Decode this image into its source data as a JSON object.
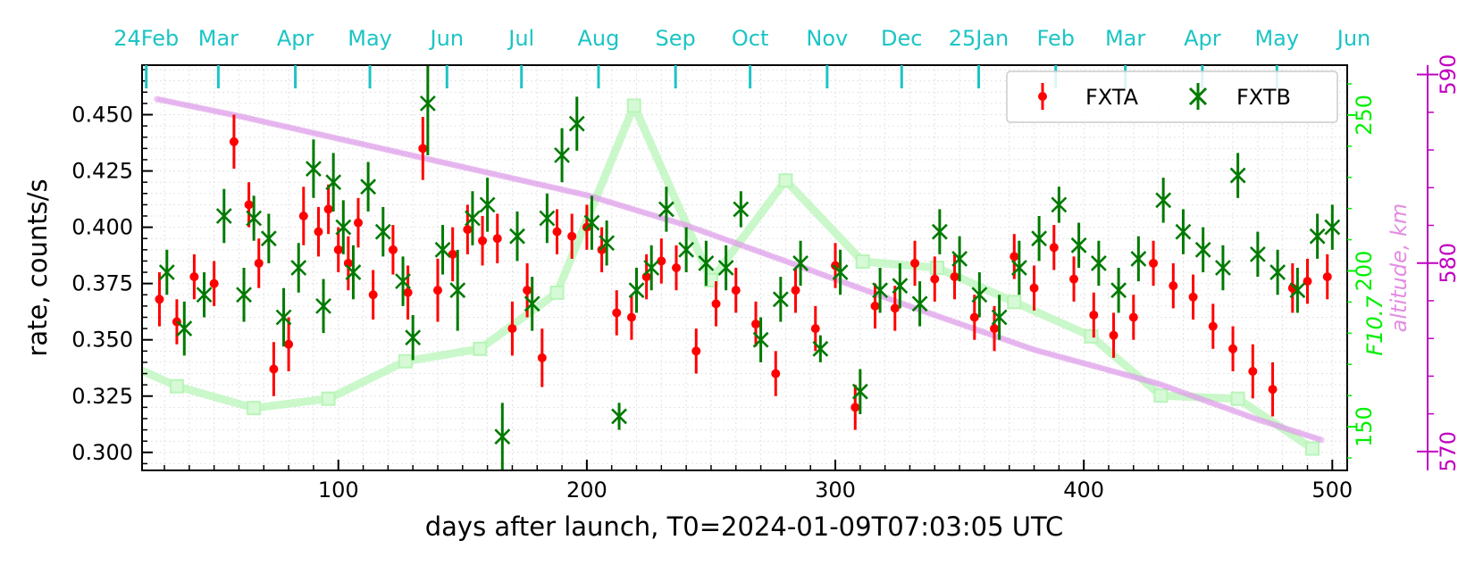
{
  "chart_data": {
    "type": "scatter",
    "title": "",
    "xlabel": "days after launch, T0=2024-01-09T07:03:05 UTC",
    "ylabel": "rate, counts/s",
    "xlim": [
      21,
      506
    ],
    "ylim": [
      0.292,
      0.472
    ],
    "x_ticks": [
      100,
      200,
      300,
      400,
      500
    ],
    "y_ticks": [
      0.3,
      0.325,
      0.35,
      0.375,
      0.4,
      0.425,
      0.45
    ],
    "y_tick_labels": [
      "0.300",
      "0.325",
      "0.350",
      "0.375",
      "0.400",
      "0.425",
      "0.450"
    ],
    "grid": true,
    "legend": "top-right",
    "top_axis": {
      "labels": [
        "24Feb",
        "Mar",
        "Apr",
        "May",
        "Jun",
        "Jul",
        "Aug",
        "Sep",
        "Oct",
        "Nov",
        "Dec",
        "25Jan",
        "Feb",
        "Mar",
        "Apr",
        "May",
        "Jun"
      ],
      "days": [
        22.7,
        51.7,
        82.7,
        112.7,
        143.7,
        173.7,
        204.7,
        235.7,
        265.7,
        296.7,
        326.7,
        357.7,
        388.7,
        416.7,
        447.7,
        477.7,
        508.7
      ],
      "color": "#1cc4c4"
    },
    "f107_axis": {
      "label": "F10.7",
      "ylim": [
        136,
        266
      ],
      "ticks": [
        150,
        200,
        250
      ],
      "tick_labels": [
        "150",
        "200",
        "250"
      ],
      "color": "#00ee00"
    },
    "altitude_axis": {
      "label": "altitude, km",
      "ylim": [
        569,
        590.5
      ],
      "ticks": [
        570,
        580,
        590
      ],
      "tick_labels": [
        "570",
        "580",
        "590"
      ],
      "color": "#c000c0"
    },
    "series": [
      {
        "name": "FXTA",
        "color": "#ff0000",
        "marker": "dot",
        "x": [
          28,
          35,
          42,
          50,
          58,
          64,
          68,
          74,
          80,
          86,
          92,
          96,
          100,
          104,
          108,
          114,
          122,
          128,
          134,
          140,
          146,
          152,
          158,
          164,
          170,
          176,
          182,
          188,
          194,
          200,
          206,
          212,
          218,
          224,
          230,
          236,
          244,
          252,
          260,
          268,
          276,
          284,
          292,
          300,
          308,
          316,
          324,
          332,
          340,
          348,
          356,
          364,
          372,
          380,
          388,
          396,
          404,
          412,
          420,
          428,
          436,
          444,
          452,
          460,
          468,
          476,
          484,
          490,
          498
        ],
        "y": [
          0.368,
          0.358,
          0.378,
          0.375,
          0.438,
          0.41,
          0.384,
          0.337,
          0.348,
          0.405,
          0.398,
          0.408,
          0.39,
          0.384,
          0.402,
          0.37,
          0.39,
          0.371,
          0.435,
          0.372,
          0.388,
          0.399,
          0.394,
          0.395,
          0.355,
          0.372,
          0.342,
          0.398,
          0.396,
          0.4,
          0.39,
          0.362,
          0.36,
          0.378,
          0.385,
          0.382,
          0.345,
          0.366,
          0.372,
          0.357,
          0.335,
          0.372,
          0.355,
          0.383,
          0.32,
          0.365,
          0.364,
          0.384,
          0.377,
          0.378,
          0.36,
          0.355,
          0.387,
          0.373,
          0.391,
          0.377,
          0.361,
          0.352,
          0.36,
          0.384,
          0.374,
          0.369,
          0.356,
          0.346,
          0.336,
          0.328,
          0.373,
          0.376,
          0.378
        ],
        "yerr": [
          0.012,
          0.01,
          0.01,
          0.01,
          0.012,
          0.01,
          0.011,
          0.012,
          0.012,
          0.013,
          0.011,
          0.011,
          0.01,
          0.012,
          0.011,
          0.011,
          0.011,
          0.012,
          0.014,
          0.014,
          0.012,
          0.011,
          0.011,
          0.011,
          0.012,
          0.012,
          0.013,
          0.01,
          0.01,
          0.01,
          0.01,
          0.01,
          0.01,
          0.01,
          0.01,
          0.01,
          0.01,
          0.01,
          0.01,
          0.01,
          0.01,
          0.01,
          0.01,
          0.01,
          0.01,
          0.01,
          0.01,
          0.01,
          0.01,
          0.01,
          0.01,
          0.01,
          0.01,
          0.01,
          0.01,
          0.01,
          0.01,
          0.01,
          0.01,
          0.01,
          0.01,
          0.01,
          0.01,
          0.01,
          0.012,
          0.012,
          0.011,
          0.01,
          0.01
        ]
      },
      {
        "name": "FXTB",
        "color": "#007a00",
        "marker": "x",
        "x": [
          31,
          38,
          46,
          54,
          62,
          66,
          72,
          78,
          84,
          90,
          94,
          98,
          102,
          106,
          112,
          118,
          126,
          130,
          136,
          142,
          148,
          154,
          160,
          166,
          172,
          178,
          184,
          190,
          196,
          202,
          208,
          213,
          220,
          226,
          232,
          240,
          248,
          256,
          262,
          270,
          278,
          286,
          294,
          302,
          310,
          318,
          326,
          334,
          342,
          350,
          358,
          366,
          374,
          382,
          390,
          398,
          406,
          414,
          422,
          432,
          440,
          448,
          456,
          462,
          470,
          478,
          486,
          494,
          500
        ],
        "y": [
          0.38,
          0.355,
          0.37,
          0.405,
          0.37,
          0.404,
          0.395,
          0.36,
          0.382,
          0.426,
          0.365,
          0.42,
          0.4,
          0.38,
          0.418,
          0.398,
          0.376,
          0.351,
          0.455,
          0.39,
          0.372,
          0.404,
          0.41,
          0.307,
          0.396,
          0.366,
          0.404,
          0.432,
          0.446,
          0.402,
          0.393,
          0.316,
          0.372,
          0.382,
          0.408,
          0.39,
          0.384,
          0.382,
          0.408,
          0.35,
          0.368,
          0.384,
          0.346,
          0.38,
          0.327,
          0.372,
          0.374,
          0.366,
          0.398,
          0.386,
          0.37,
          0.36,
          0.382,
          0.395,
          0.41,
          0.392,
          0.384,
          0.372,
          0.386,
          0.412,
          0.398,
          0.39,
          0.382,
          0.423,
          0.388,
          0.38,
          0.372,
          0.396,
          0.4
        ],
        "yerr": [
          0.01,
          0.012,
          0.01,
          0.012,
          0.012,
          0.01,
          0.011,
          0.013,
          0.011,
          0.013,
          0.012,
          0.013,
          0.012,
          0.012,
          0.011,
          0.011,
          0.011,
          0.01,
          0.023,
          0.011,
          0.018,
          0.012,
          0.012,
          0.015,
          0.011,
          0.012,
          0.011,
          0.012,
          0.012,
          0.012,
          0.01,
          0.006,
          0.01,
          0.01,
          0.01,
          0.01,
          0.01,
          0.01,
          0.008,
          0.01,
          0.01,
          0.01,
          0.006,
          0.01,
          0.01,
          0.01,
          0.01,
          0.01,
          0.01,
          0.01,
          0.01,
          0.01,
          0.012,
          0.01,
          0.008,
          0.01,
          0.01,
          0.01,
          0.01,
          0.01,
          0.01,
          0.01,
          0.01,
          0.01,
          0.01,
          0.01,
          0.01,
          0.01,
          0.01
        ]
      },
      {
        "name": "F10.7",
        "color": "#b8f5b8",
        "axis": "f107",
        "x": [
          9,
          35,
          66,
          96,
          127,
          157,
          188,
          219,
          250,
          280,
          311,
          341,
          372,
          403,
          431,
          462,
          492
        ],
        "y": [
          168,
          163,
          156,
          159,
          171,
          175,
          193,
          253,
          197,
          229,
          203,
          201,
          190,
          179,
          160,
          159,
          143
        ]
      },
      {
        "name": "altitude",
        "color": "#e2a8ee",
        "axis": "altitude",
        "x": [
          27,
          60,
          100,
          150,
          200,
          240,
          280,
          330,
          380,
          430,
          470,
          496
        ],
        "y": [
          588.7,
          587.8,
          586.6,
          585.1,
          583.6,
          582.0,
          580.1,
          577.7,
          575.4,
          573.6,
          571.7,
          570.6
        ]
      }
    ]
  }
}
